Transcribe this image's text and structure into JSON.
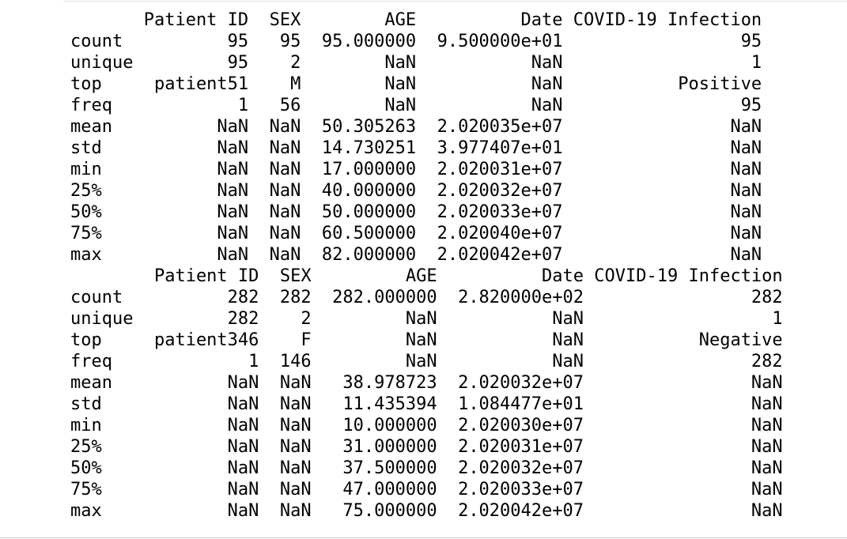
{
  "output_lines": [
    "       Patient ID  SEX        AGE          Date COVID-19 Infection",
    "count          95   95  95.000000  9.500000e+01                 95",
    "unique         95    2        NaN           NaN                  1",
    "top     patient51    M        NaN           NaN           Positive",
    "freq            1   56        NaN           NaN                 95",
    "mean          NaN  NaN  50.305263  2.020035e+07                NaN",
    "std           NaN  NaN  14.730251  3.977407e+01                NaN",
    "min           NaN  NaN  17.000000  2.020031e+07                NaN",
    "25%           NaN  NaN  40.000000  2.020032e+07                NaN",
    "50%           NaN  NaN  50.000000  2.020033e+07                NaN",
    "75%           NaN  NaN  60.500000  2.020040e+07                NaN",
    "max           NaN  NaN  82.000000  2.020042e+07                NaN",
    "        Patient ID  SEX         AGE          Date COVID-19 Infection",
    "count          282  282  282.000000  2.820000e+02                282",
    "unique         282    2         NaN           NaN                  1",
    "top     patient346    F         NaN           NaN           Negative",
    "freq             1  146         NaN           NaN                282",
    "mean           NaN  NaN   38.978723  2.020032e+07                NaN",
    "std            NaN  NaN   11.435394  1.084477e+01                NaN",
    "min            NaN  NaN   10.000000  2.020030e+07                NaN",
    "25%            NaN  NaN   31.000000  2.020031e+07                NaN",
    "50%            NaN  NaN   37.500000  2.020032e+07                NaN",
    "75%            NaN  NaN   47.000000  2.020033e+07                NaN",
    "max            NaN  NaN   75.000000  2.020042e+07                NaN"
  ]
}
